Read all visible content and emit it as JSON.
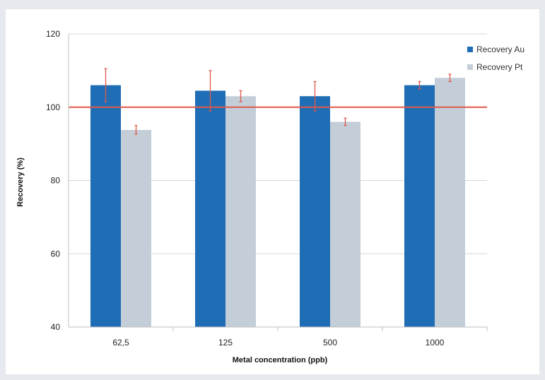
{
  "chart_data": {
    "type": "bar",
    "title": "",
    "xlabel": "Metal concentration (ppb)",
    "ylabel": "Recovery (%)",
    "ylim": [
      40,
      120
    ],
    "yticks": [
      "40",
      "60",
      "80",
      "100",
      "120"
    ],
    "categories": [
      "62,5",
      "125",
      "500",
      "1000"
    ],
    "series": [
      {
        "name": "Recovery Au",
        "color": "#1f6db5",
        "values": [
          106,
          104.5,
          103,
          106
        ],
        "errors": [
          4.5,
          5.5,
          4,
          1
        ]
      },
      {
        "name": "Recovery Pt",
        "color": "#c3ced8",
        "values": [
          93.8,
          103,
          96,
          108
        ],
        "errors": [
          1.2,
          1.5,
          1,
          1
        ]
      }
    ],
    "reference_line": {
      "value": 100,
      "color": "#e0584a"
    },
    "error_bar_color": "#e0584a",
    "grid": true,
    "legend_position": "top-right"
  }
}
